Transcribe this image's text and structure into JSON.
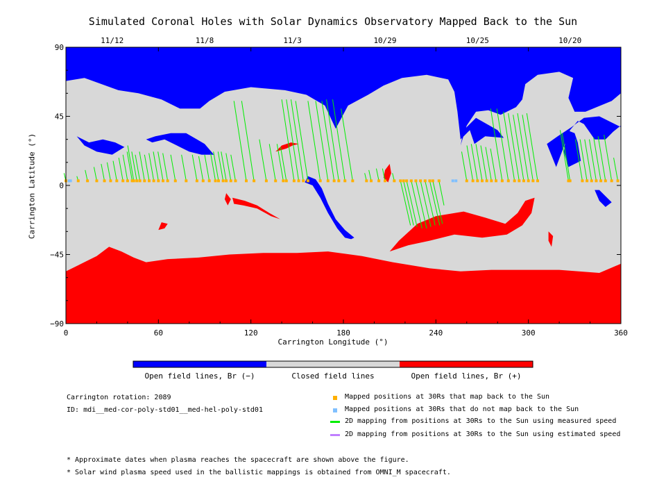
{
  "chart_data": {
    "type": "heatmap",
    "title": "Simulated Coronal Holes with Solar Dynamics Observatory Mapped Back to the Sun",
    "xlabel": "Carrington Longitude (°)",
    "ylabel": "Carrington Latitude (°)",
    "xlim": [
      0,
      360
    ],
    "ylim": [
      -90,
      90
    ],
    "x_ticks": [
      0,
      60,
      120,
      180,
      240,
      300,
      360
    ],
    "y_ticks": [
      -90,
      -45,
      0,
      45,
      90
    ],
    "top_axis": {
      "labels": [
        "11/12",
        "11/8",
        "11/3",
        "10/29",
        "10/25",
        "10/20"
      ],
      "longitudes": [
        30,
        90,
        147,
        207,
        267,
        327
      ]
    },
    "colorbar": {
      "segments": [
        {
          "label": "Open field lines, Br (−)",
          "color": "#0000ff"
        },
        {
          "label": "Closed field lines",
          "color": "#d8d8d8"
        },
        {
          "label": "Open field lines, Br (+)",
          "color": "#ff0000"
        }
      ]
    },
    "colors": {
      "negative": "#0000ff",
      "closed": "#d8d8d8",
      "positive": "#ff0000",
      "mapped": "#ffb000",
      "not_mapped": "#80c0ff",
      "measured_line": "#00ee00",
      "estimated_line": "#c080ff"
    },
    "legend": {
      "mapped": "Mapped positions at 30Rs that map back to the Sun",
      "not_mapped": "Mapped positions at 30Rs that do not map back to the Sun",
      "measured": "2D mapping from positions at 30Rs to the Sun using measured speed",
      "estimated": "2D mapping from positions at 30Rs to the Sun using estimated speed"
    },
    "points_latitude": 3,
    "not_mapped_longitudes": [
      2,
      3,
      251,
      253
    ],
    "mappings": [
      [
        0,
        8
      ],
      [
        8,
        6
      ],
      [
        14,
        10
      ],
      [
        20,
        12
      ],
      [
        25,
        14
      ],
      [
        29,
        15
      ],
      [
        33,
        16
      ],
      [
        37,
        18
      ],
      [
        40,
        20
      ],
      [
        43,
        22
      ],
      [
        44,
        26
      ],
      [
        46,
        22
      ],
      [
        48,
        20
      ],
      [
        51,
        22
      ],
      [
        54,
        20
      ],
      [
        57,
        21
      ],
      [
        60,
        22
      ],
      [
        63,
        22
      ],
      [
        66,
        21
      ],
      [
        71,
        20
      ],
      [
        78,
        20
      ],
      [
        85,
        20
      ],
      [
        89,
        19
      ],
      [
        93,
        20
      ],
      [
        97,
        21
      ],
      [
        99,
        22
      ],
      [
        102,
        22
      ],
      [
        104,
        22
      ],
      [
        107,
        21
      ],
      [
        110,
        20
      ],
      [
        117,
        55
      ],
      [
        122,
        55
      ],
      [
        130,
        30
      ],
      [
        136,
        27
      ],
      [
        141,
        27
      ],
      [
        143,
        25
      ],
      [
        148,
        56
      ],
      [
        151,
        56
      ],
      [
        154,
        56
      ],
      [
        157,
        55
      ],
      [
        165,
        55
      ],
      [
        170,
        55
      ],
      [
        174,
        55
      ],
      [
        177,
        56
      ],
      [
        181,
        56
      ],
      [
        186,
        50
      ],
      [
        195,
        8
      ],
      [
        198,
        10
      ],
      [
        203,
        11
      ],
      [
        207,
        11
      ],
      [
        213,
        8
      ],
      [
        217,
        -26
      ],
      [
        219,
        -26
      ],
      [
        221,
        -27
      ],
      [
        224,
        -28
      ],
      [
        227,
        -28
      ],
      [
        230,
        -27
      ],
      [
        233,
        -26
      ],
      [
        236,
        -26
      ],
      [
        238,
        -25
      ],
      [
        242,
        -13
      ],
      [
        260,
        22
      ],
      [
        264,
        26
      ],
      [
        267,
        27
      ],
      [
        270,
        27
      ],
      [
        273,
        26
      ],
      [
        276,
        25
      ],
      [
        279,
        24
      ],
      [
        283,
        50
      ],
      [
        287,
        50
      ],
      [
        291,
        48
      ],
      [
        294,
        47
      ],
      [
        297,
        46
      ],
      [
        300,
        47
      ],
      [
        303,
        46
      ],
      [
        306,
        47
      ],
      [
        326,
        36
      ],
      [
        327,
        34
      ],
      [
        335,
        30
      ],
      [
        338,
        30
      ],
      [
        341,
        30
      ],
      [
        344,
        30
      ],
      [
        347,
        31
      ],
      [
        350,
        32
      ],
      [
        354,
        33
      ],
      [
        358,
        18
      ]
    ],
    "regions": {
      "negative": [
        [
          [
            0,
            90
          ],
          [
            360,
            90
          ],
          [
            360,
            38
          ],
          [
            346,
            45
          ],
          [
            336,
            44
          ],
          [
            328,
            38
          ],
          [
            319,
            32
          ],
          [
            312,
            27
          ],
          [
            318,
            12
          ],
          [
            327,
            36
          ],
          [
            332,
            42
          ],
          [
            336,
            40
          ],
          [
            343,
            30
          ],
          [
            350,
            30
          ],
          [
            355,
            35
          ],
          [
            360,
            39
          ],
          [
            360,
            60
          ],
          [
            354,
            55
          ],
          [
            337,
            48
          ],
          [
            330,
            48
          ],
          [
            326,
            57
          ],
          [
            329,
            70
          ],
          [
            320,
            74
          ],
          [
            306,
            72
          ],
          [
            298,
            66
          ],
          [
            296,
            56
          ],
          [
            292,
            51
          ],
          [
            282,
            46
          ],
          [
            274,
            49
          ],
          [
            266,
            48
          ],
          [
            260,
            39
          ],
          [
            256,
            26
          ],
          [
            258,
            36
          ],
          [
            266,
            44
          ],
          [
            280,
            36
          ],
          [
            284,
            31
          ],
          [
            272,
            32
          ],
          [
            265,
            27
          ],
          [
            262,
            36
          ],
          [
            256,
            30
          ],
          [
            254,
            48
          ],
          [
            252,
            61
          ],
          [
            248,
            69
          ],
          [
            234,
            72
          ],
          [
            218,
            70
          ],
          [
            206,
            65
          ],
          [
            196,
            59
          ],
          [
            183,
            52
          ],
          [
            175,
            37
          ],
          [
            168,
            52
          ],
          [
            156,
            59
          ],
          [
            142,
            62
          ],
          [
            120,
            64
          ],
          [
            103,
            61
          ],
          [
            93,
            55
          ],
          [
            87,
            50
          ],
          [
            74,
            50
          ],
          [
            62,
            56
          ],
          [
            47,
            60
          ],
          [
            34,
            62
          ],
          [
            12,
            70
          ],
          [
            0,
            68
          ]
        ],
        [
          [
            52,
            30
          ],
          [
            58,
            32
          ],
          [
            68,
            34
          ],
          [
            78,
            34
          ],
          [
            85,
            30
          ],
          [
            90,
            27
          ],
          [
            96,
            20
          ],
          [
            88,
            20
          ],
          [
            80,
            22
          ],
          [
            74,
            25
          ],
          [
            64,
            30
          ],
          [
            56,
            28
          ]
        ],
        [
          [
            7,
            32
          ],
          [
            15,
            28
          ],
          [
            24,
            30
          ],
          [
            32,
            28
          ],
          [
            38,
            25
          ],
          [
            30,
            20
          ],
          [
            20,
            22
          ],
          [
            12,
            26
          ]
        ],
        [
          [
            325,
            36
          ],
          [
            330,
            34
          ],
          [
            332,
            28
          ],
          [
            334,
            16
          ],
          [
            326,
            12
          ],
          [
            323,
            22
          ]
        ],
        [
          [
            155,
            2
          ],
          [
            160,
            0
          ],
          [
            165,
            -8
          ],
          [
            170,
            -18
          ],
          [
            176,
            -28
          ],
          [
            181,
            -34
          ],
          [
            185,
            -35
          ],
          [
            187,
            -34
          ],
          [
            181,
            -29
          ],
          [
            175,
            -22
          ],
          [
            170,
            -12
          ],
          [
            166,
            -2
          ],
          [
            162,
            4
          ],
          [
            157,
            6
          ]
        ],
        [
          [
            343,
            -3
          ],
          [
            346,
            -10
          ],
          [
            350,
            -14
          ],
          [
            354,
            -11
          ],
          [
            350,
            -7
          ],
          [
            346,
            -3
          ]
        ]
      ],
      "positive": [
        [
          [
            0,
            -56
          ],
          [
            10,
            -51
          ],
          [
            20,
            -46
          ],
          [
            28,
            -40
          ],
          [
            36,
            -43
          ],
          [
            44,
            -47
          ],
          [
            52,
            -50
          ],
          [
            66,
            -48
          ],
          [
            86,
            -47
          ],
          [
            106,
            -45
          ],
          [
            128,
            -44
          ],
          [
            150,
            -44
          ],
          [
            170,
            -43
          ],
          [
            192,
            -46
          ],
          [
            212,
            -50
          ],
          [
            236,
            -54
          ],
          [
            256,
            -56
          ],
          [
            276,
            -55
          ],
          [
            298,
            -55
          ],
          [
            320,
            -55
          ],
          [
            346,
            -57
          ],
          [
            360,
            -51
          ],
          [
            360,
            -90
          ],
          [
            0,
            -90
          ]
        ],
        [
          [
            210,
            -43
          ],
          [
            216,
            -36
          ],
          [
            228,
            -25
          ],
          [
            240,
            -20
          ],
          [
            258,
            -17
          ],
          [
            272,
            -21
          ],
          [
            285,
            -25
          ],
          [
            293,
            -18
          ],
          [
            298,
            -10
          ],
          [
            304,
            -8
          ],
          [
            302,
            -18
          ],
          [
            296,
            -26
          ],
          [
            286,
            -32
          ],
          [
            270,
            -34
          ],
          [
            252,
            -32
          ],
          [
            236,
            -36
          ],
          [
            222,
            -39
          ]
        ],
        [
          [
            207,
            10
          ],
          [
            210,
            14
          ],
          [
            211,
            8
          ],
          [
            209,
            2
          ],
          [
            206,
            5
          ]
        ],
        [
          [
            136,
            22
          ],
          [
            143,
            24
          ],
          [
            147,
            26
          ],
          [
            151,
            27
          ],
          [
            146,
            28
          ],
          [
            140,
            26
          ]
        ],
        [
          [
            108,
            -8
          ],
          [
            116,
            -10
          ],
          [
            124,
            -13
          ],
          [
            132,
            -18
          ],
          [
            139,
            -22
          ],
          [
            133,
            -20
          ],
          [
            124,
            -15
          ],
          [
            115,
            -13
          ],
          [
            109,
            -12
          ]
        ],
        [
          [
            62,
            -24
          ],
          [
            66,
            -25
          ],
          [
            64,
            -28
          ],
          [
            60,
            -29
          ]
        ],
        [
          [
            104,
            -5
          ],
          [
            107,
            -9
          ],
          [
            105,
            -13
          ],
          [
            103,
            -9
          ]
        ],
        [
          [
            313,
            -30
          ],
          [
            316,
            -33
          ],
          [
            315,
            -40
          ],
          [
            313,
            -36
          ]
        ]
      ]
    }
  },
  "annotations": {
    "rotation": "Carrington rotation: 2089",
    "id": "ID: mdi__med-cor-poly-std01__med-hel-poly-std01",
    "note1": "* Approximate dates when plasma reaches the spacecraft are shown above the figure.",
    "note2": "* Solar wind plasma speed used in the ballistic mappings is obtained from OMNI_M spacecraft."
  }
}
